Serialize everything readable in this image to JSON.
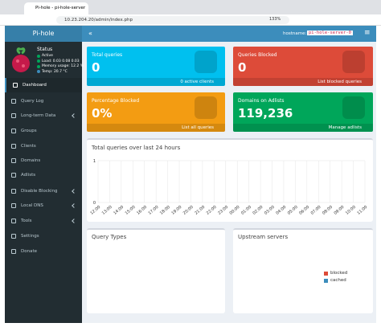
{
  "browser": {
    "tab_title": "Pi-hole - pi-hole-server",
    "url": "10.23.204.20/admin/index.php",
    "zoom": "133%"
  },
  "sidebar": {
    "brand": "Pi-hole",
    "status": {
      "title": "Status",
      "items": [
        "Active",
        "Load: 0.03 0.08 0.03",
        "Memory usage: 12.2 %",
        "Temp: 20.7 °C"
      ]
    },
    "menu": [
      "Dashboard",
      "Query Log",
      "Long-term Data",
      "Groups",
      "Clients",
      "Domains",
      "Adlists",
      "Disable Blocking",
      "Local DNS",
      "Tools",
      "Settings",
      "Donate"
    ]
  },
  "header": {
    "hostname_label": "hostname:",
    "hostname": "pi-hole-server-0"
  },
  "cards": [
    {
      "title": "Total queries",
      "value": "0",
      "link": "0 active clients"
    },
    {
      "title": "Queries Blocked",
      "value": "0",
      "link": "List blocked queries"
    },
    {
      "title": "Percentage Blocked",
      "value": "0%",
      "link": "List all queries"
    },
    {
      "title": "Domains on Adlists",
      "value": "119,236",
      "link": "Manage adlists"
    }
  ],
  "chart": {
    "title": "Total queries over last 24 hours",
    "categories": [
      "12:00",
      "13:00",
      "14:00",
      "15:00",
      "16:00",
      "17:00",
      "18:00",
      "19:00",
      "20:00",
      "21:00",
      "22:00",
      "23:00",
      "00:00",
      "01:00",
      "02:00",
      "03:00",
      "04:00",
      "05:00",
      "06:00",
      "07:00",
      "08:00",
      "09:00",
      "10:00",
      "11:00"
    ],
    "ylim": [
      0,
      1
    ],
    "yticks": [
      0,
      1
    ]
  },
  "panels": [
    {
      "title": "Query Types"
    },
    {
      "title": "Upstream servers",
      "legend": [
        "blocked",
        "cached"
      ]
    }
  ]
}
